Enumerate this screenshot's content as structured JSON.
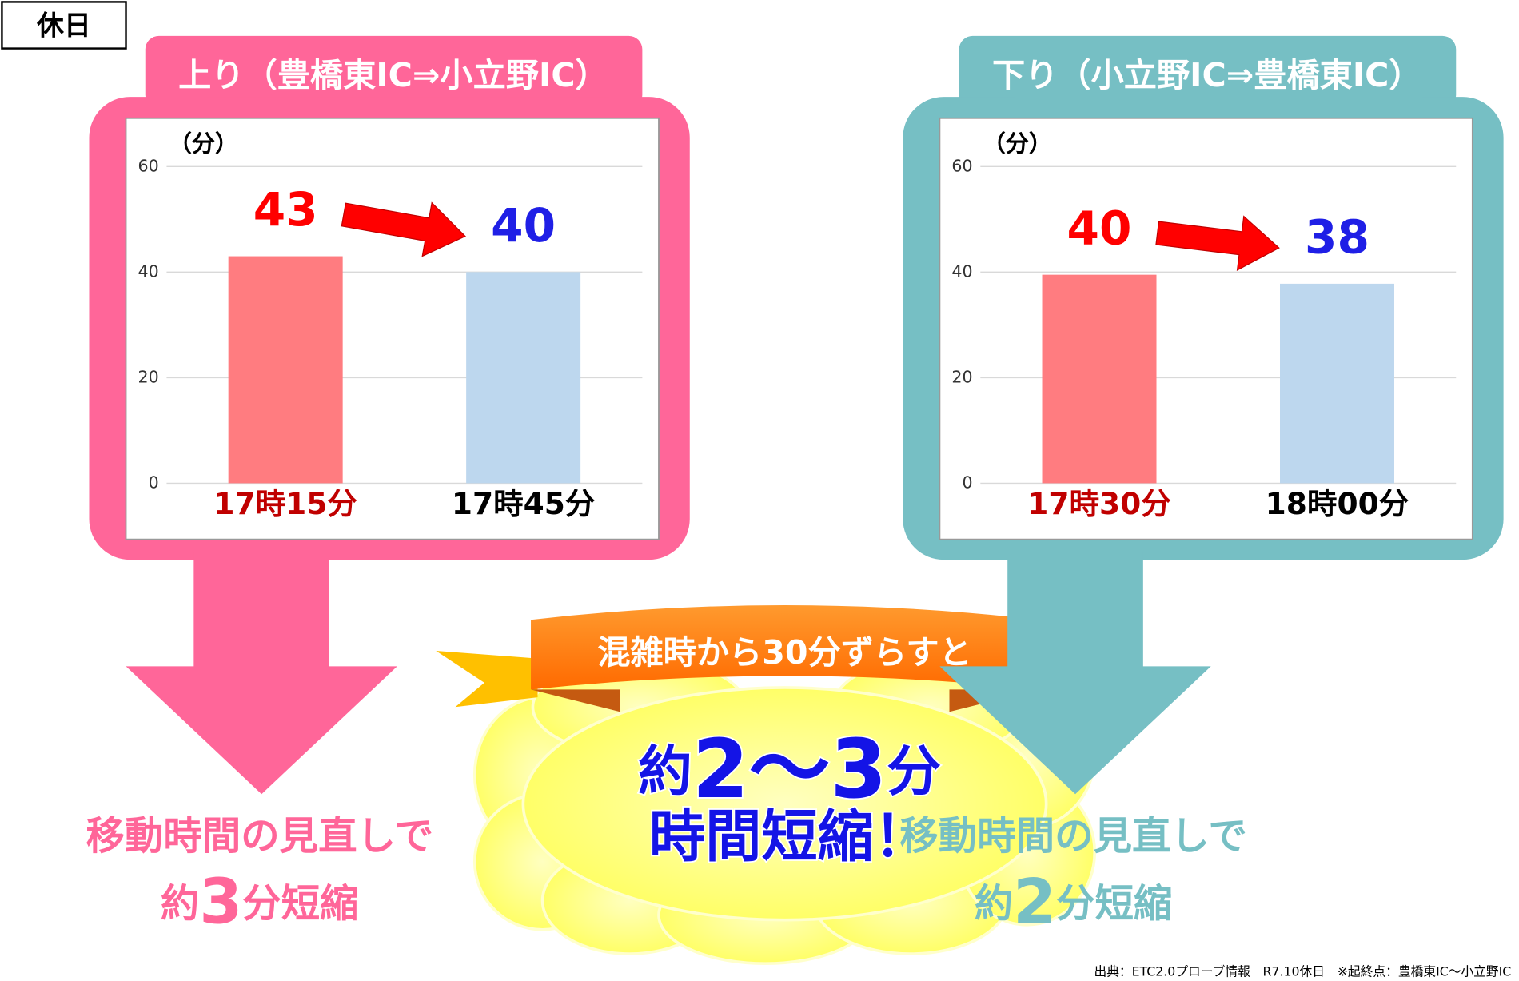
{
  "label": "休日",
  "chart_data": [
    {
      "type": "bar",
      "title": "上り（豊橋東IC⇒小立野IC）",
      "y_label": "（分）",
      "categories": [
        "17時15分",
        "17時45分"
      ],
      "values": [
        43,
        40
      ],
      "colors": [
        "#ff7c80",
        "#bdd7ee"
      ],
      "value_label_colors": [
        "#ff0000",
        "#1f1fe6"
      ],
      "category_label_colors": [
        "#c00000",
        "#000000"
      ],
      "panel_color": "#ff6699",
      "ylim": [
        0,
        60
      ],
      "yticks": [
        0,
        20,
        40,
        60
      ],
      "grid": true
    },
    {
      "type": "bar",
      "title": "下り（小立野IC⇒豊橋東IC）",
      "y_label": "（分）",
      "categories": [
        "17時30分",
        "18時00分"
      ],
      "values": [
        39.5,
        37.8
      ],
      "value_labels": [
        "40",
        "38"
      ],
      "colors": [
        "#ff7c80",
        "#bdd7ee"
      ],
      "value_label_colors": [
        "#ff0000",
        "#1f1fe6"
      ],
      "category_label_colors": [
        "#c00000",
        "#000000"
      ],
      "panel_color": "#76bfc4",
      "ylim": [
        0,
        60
      ],
      "yticks": [
        0,
        20,
        40,
        60
      ],
      "grid": true
    }
  ],
  "summaries": [
    {
      "line1": "移動時間の見直しで",
      "prefix": "約",
      "number": "3",
      "suffix": "分短縮"
    },
    {
      "line1": "移動時間の見直しで",
      "prefix": "約",
      "number": "2",
      "suffix": "分短縮"
    }
  ],
  "banner": "混雑時から30分ずらすと",
  "center": {
    "prefix": "約",
    "number": "2～3",
    "suffix": "分",
    "line2": "時間短縮！"
  },
  "source": "出典：ETC2.0プローブ情報　R7.10休日　※起終点：豊橋東IC～小立野IC"
}
